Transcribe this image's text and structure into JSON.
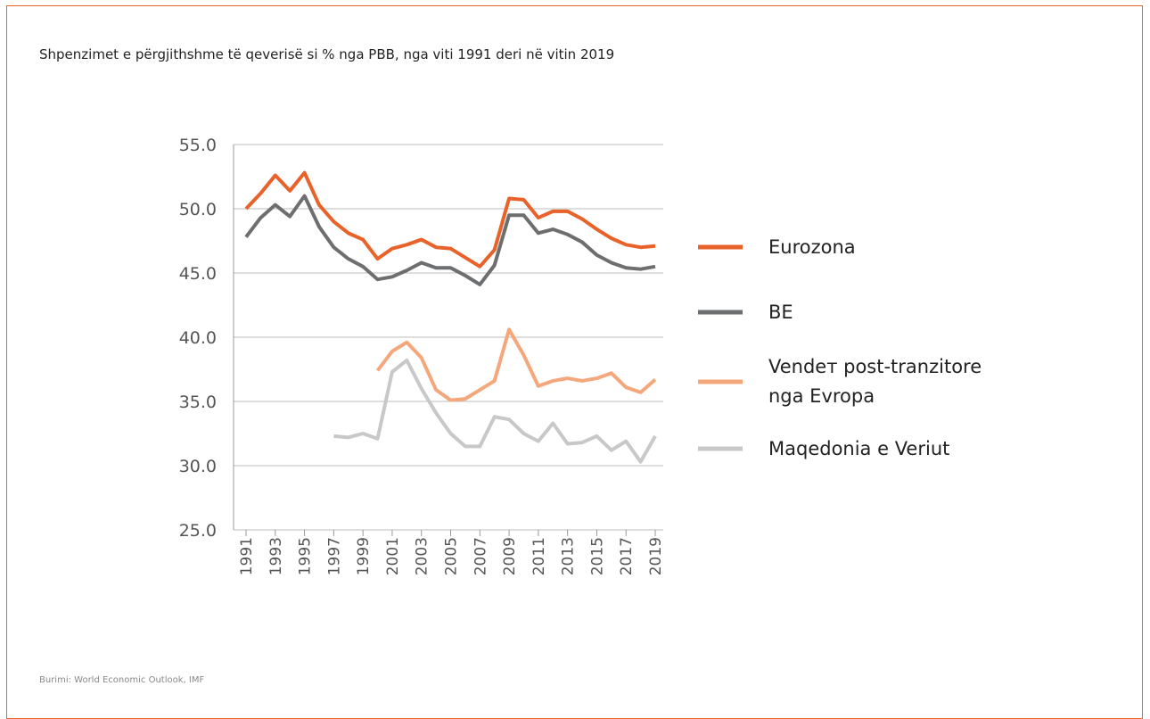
{
  "chart_data": {
    "type": "line",
    "title": "Shpenzimet e përgjithshme të qeverisë si % nga PBB, nga viti 1991 deri në vitin 2019",
    "source": "Burimi: World Economic Outlook, IMF",
    "x": [
      1991,
      1992,
      1993,
      1994,
      1995,
      1996,
      1997,
      1998,
      1999,
      2000,
      2001,
      2002,
      2003,
      2004,
      2005,
      2006,
      2007,
      2008,
      2009,
      2010,
      2011,
      2012,
      2013,
      2014,
      2015,
      2016,
      2017,
      2018,
      2019
    ],
    "xlim": [
      1991,
      2019
    ],
    "xticks": [
      1991,
      1993,
      1995,
      1997,
      1999,
      2001,
      2003,
      2005,
      2007,
      2009,
      2011,
      2013,
      2015,
      2017,
      2019
    ],
    "ylim": [
      25,
      55
    ],
    "yticks": [
      {
        "value": 25,
        "label": "25.0"
      },
      {
        "value": 30,
        "label": "30.0"
      },
      {
        "value": 35,
        "label": "35.0"
      },
      {
        "value": 40,
        "label": "40.0"
      },
      {
        "value": 45,
        "label": "45.0"
      },
      {
        "value": 50,
        "label": "50.0"
      },
      {
        "value": 55,
        "label": "55.0"
      }
    ],
    "grid": true,
    "legend": "right",
    "series": [
      {
        "name": "Eurozona",
        "color": "#e8622a",
        "values": [
          50.0,
          51.2,
          52.6,
          51.4,
          52.8,
          50.3,
          49.0,
          48.1,
          47.6,
          46.1,
          46.9,
          47.2,
          47.6,
          47.0,
          46.9,
          46.2,
          45.5,
          46.8,
          50.8,
          50.7,
          49.3,
          49.8,
          49.8,
          49.2,
          48.4,
          47.7,
          47.2,
          47.0,
          47.1
        ]
      },
      {
        "name": "BE",
        "color": "#6d6e70",
        "values": [
          47.8,
          49.3,
          50.3,
          49.4,
          51.0,
          48.6,
          47.0,
          46.1,
          45.5,
          44.5,
          44.7,
          45.2,
          45.8,
          45.4,
          45.4,
          44.8,
          44.1,
          45.6,
          49.5,
          49.5,
          48.1,
          48.4,
          48.0,
          47.4,
          46.4,
          45.8,
          45.4,
          45.3,
          45.5
        ]
      },
      {
        "name": "Vendeт post-tranzitore nga Evropa",
        "color": "#f5a77c",
        "values": [
          null,
          null,
          null,
          null,
          null,
          null,
          null,
          null,
          null,
          37.4,
          38.9,
          39.6,
          38.4,
          35.9,
          35.1,
          35.2,
          35.9,
          36.6,
          40.6,
          38.6,
          36.2,
          36.6,
          36.8,
          36.6,
          36.8,
          37.2,
          36.1,
          35.7,
          36.7
        ]
      },
      {
        "name": "Maqedonia e Veriut",
        "color": "#c8c8c8",
        "values": [
          null,
          null,
          null,
          null,
          null,
          null,
          32.3,
          32.2,
          32.5,
          32.1,
          37.3,
          38.2,
          36.0,
          34.1,
          32.5,
          31.5,
          31.5,
          33.8,
          33.6,
          32.5,
          31.9,
          33.3,
          31.7,
          31.8,
          32.3,
          31.2,
          31.9,
          30.3,
          32.3
        ]
      }
    ]
  }
}
